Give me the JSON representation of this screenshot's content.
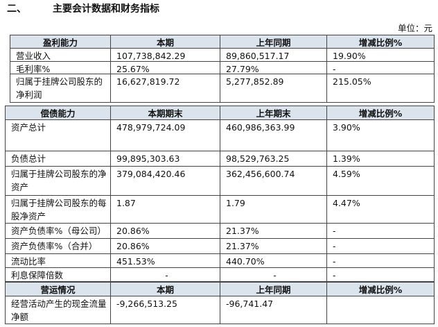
{
  "heading": {
    "number": "二、",
    "title": "主要会计数据和财务指标"
  },
  "unit": "单位：元",
  "tables": [
    {
      "header": [
        "盈利能力",
        "本期",
        "上年同期",
        "增减比例%"
      ],
      "rows": [
        [
          "营业收入",
          "107,738,842.29",
          "89,860,517.17",
          "19.90%"
        ],
        [
          "毛利率%",
          "25.67%",
          "27.79%",
          "-"
        ],
        [
          "归属于挂牌公司股东的净利润",
          "16,627,819.72",
          "5,277,852.89",
          "215.05%"
        ]
      ]
    },
    {
      "header": [
        "偿债能力",
        "本期期末",
        "上年期末",
        "增减比例%"
      ],
      "rows": [
        [
          "资产总计",
          "478,979,724.09",
          "460,986,363.99",
          "3.90%"
        ],
        [
          "负债总计",
          "99,895,303.63",
          "98,529,763.25",
          "1.39%"
        ],
        [
          "归属于挂牌公司股东的净资产",
          "379,084,420.46",
          "362,456,600.74",
          "4.59%"
        ],
        [
          "归属于挂牌公司股东的每股净资产",
          "1.87",
          "1.79",
          "4.47%"
        ],
        [
          "资产负债率%（母公司）",
          "20.86%",
          "21.37%",
          "-"
        ],
        [
          "资产负债率%（合并）",
          "20.86%",
          "21.37%",
          "-"
        ],
        [
          "流动比率",
          "451.53%",
          "440.70%",
          "-"
        ],
        [
          "利息保障倍数",
          "-",
          "-",
          "-"
        ]
      ]
    },
    {
      "header": [
        "营运情况",
        "本期",
        "上年同期",
        "增减比例%"
      ],
      "rows": [
        [
          "经营活动产生的现金流量净额",
          "-9,266,513.25",
          "-96,741.47",
          null
        ]
      ]
    }
  ]
}
